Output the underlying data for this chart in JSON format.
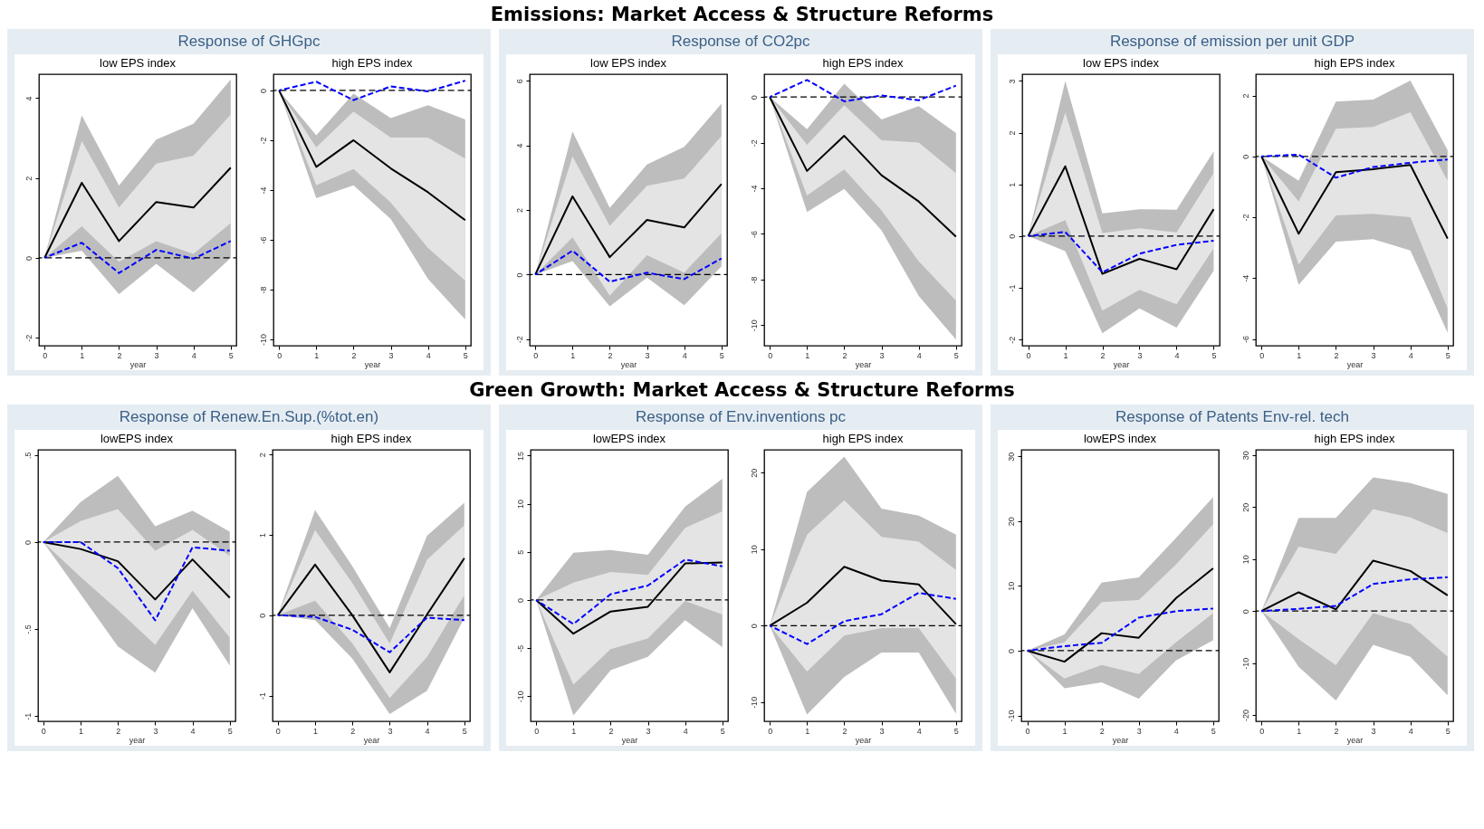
{
  "chart_data": [
    {
      "type": "line",
      "title": "low EPS index",
      "xlabel": "year",
      "annotations": [
        "Emissions: Market Access & Structure Reforms",
        "Response of GHGpc"
      ],
      "x": [
        0,
        1,
        2,
        3,
        4,
        5
      ],
      "xlim": [
        -0.15,
        5.15
      ],
      "xticks": [
        0,
        1,
        2,
        3,
        4,
        5
      ],
      "ylim": [
        -2.2,
        4.6
      ],
      "yticks": [
        -2,
        0,
        2,
        4
      ],
      "ref_lines": [
        {
          "axis": "y",
          "value": 0,
          "color": "#000000",
          "line_style": "dashed"
        }
      ],
      "series": [
        {
          "color": "#bdbdbd",
          "values": [
            null,
            null,
            null,
            null,
            null,
            null
          ],
          "lower": [
            0,
            0.18,
            -0.91,
            -0.15,
            -0.86,
            0.0
          ],
          "upper": [
            0,
            3.57,
            1.81,
            2.96,
            3.36,
            4.47
          ]
        },
        {
          "color": "#e4e4e4",
          "values": [
            null,
            null,
            null,
            null,
            null,
            null
          ],
          "lower": [
            0,
            0.79,
            -0.1,
            0.42,
            0.1,
            0.87
          ],
          "upper": [
            0,
            2.93,
            1.26,
            2.36,
            2.56,
            3.59
          ]
        },
        {
          "color": "#000000",
          "values": [
            0,
            1.88,
            0.42,
            1.4,
            1.26,
            2.26
          ]
        },
        {
          "color": "#0000ff",
          "line_style": "dashed",
          "values": [
            0,
            0.38,
            -0.38,
            0.2,
            -0.02,
            0.42
          ]
        }
      ]
    },
    {
      "type": "line",
      "title": "high EPS index",
      "xlabel": "year",
      "x": [
        0,
        1,
        2,
        3,
        4,
        5
      ],
      "xlim": [
        -0.15,
        5.15
      ],
      "xticks": [
        0,
        1,
        2,
        3,
        4,
        5
      ],
      "ylim": [
        -10.25,
        0.65
      ],
      "yticks": [
        -10,
        -8,
        -6,
        -4,
        -2,
        0
      ],
      "ref_lines": [
        {
          "axis": "y",
          "value": 0,
          "color": "#000000",
          "line_style": "dashed"
        }
      ],
      "series": [
        {
          "color": "#bdbdbd",
          "values": [
            null,
            null,
            null,
            null,
            null,
            null
          ],
          "lower": [
            0,
            -4.33,
            -3.81,
            -5.16,
            -7.57,
            -9.2
          ],
          "upper": [
            0,
            -1.8,
            -0.13,
            -1.11,
            -0.59,
            -1.17
          ]
        },
        {
          "color": "#e4e4e4",
          "values": [
            null,
            null,
            null,
            null,
            null,
            null
          ],
          "lower": [
            0,
            -3.81,
            -3.16,
            -4.5,
            -6.33,
            -7.64
          ],
          "upper": [
            0,
            -2.28,
            -0.85,
            -1.89,
            -1.89,
            -2.74
          ]
        },
        {
          "color": "#000000",
          "values": [
            0,
            -3.07,
            -2.0,
            -3.13,
            -4.09,
            -5.21
          ]
        },
        {
          "color": "#0000ff",
          "line_style": "dashed",
          "values": [
            0,
            0.35,
            -0.39,
            0.16,
            -0.04,
            0.39
          ]
        }
      ]
    },
    {
      "type": "line",
      "title": "low EPS index",
      "xlabel": "year",
      "annotations": [
        "Response of CO2pc"
      ],
      "x": [
        0,
        1,
        2,
        3,
        4,
        5
      ],
      "xlim": [
        -0.15,
        5.15
      ],
      "xticks": [
        0,
        1,
        2,
        3,
        4,
        5
      ],
      "ylim": [
        -2.2,
        6.2
      ],
      "yticks": [
        -2,
        0,
        2,
        4,
        6
      ],
      "ref_lines": [
        {
          "axis": "y",
          "value": 0,
          "color": "#000000",
          "line_style": "dashed"
        }
      ],
      "series": [
        {
          "color": "#bdbdbd",
          "values": [
            null,
            null,
            null,
            null,
            null,
            null
          ],
          "lower": [
            0,
            0.42,
            -0.98,
            -0.09,
            -0.95,
            0.26
          ],
          "upper": [
            0,
            4.43,
            2.06,
            3.41,
            3.95,
            5.29
          ]
        },
        {
          "color": "#e4e4e4",
          "values": [
            null,
            null,
            null,
            null,
            null,
            null
          ],
          "lower": [
            0,
            1.15,
            -0.65,
            0.6,
            0.06,
            1.28
          ],
          "upper": [
            0,
            3.66,
            1.51,
            2.75,
            2.97,
            4.29
          ]
        },
        {
          "color": "#000000",
          "values": [
            0,
            2.42,
            0.54,
            1.69,
            1.46,
            2.8
          ]
        },
        {
          "color": "#0000ff",
          "line_style": "dashed",
          "values": [
            0,
            0.74,
            -0.22,
            0.06,
            -0.14,
            0.5
          ]
        }
      ]
    },
    {
      "type": "line",
      "title": "high EPS index",
      "xlabel": "year",
      "x": [
        0,
        1,
        2,
        3,
        4,
        5
      ],
      "xlim": [
        -0.15,
        5.15
      ],
      "xticks": [
        0,
        1,
        2,
        3,
        4,
        5
      ],
      "ylim": [
        -10.9,
        1.0
      ],
      "yticks": [
        -10,
        -8,
        -6,
        -4,
        -2,
        0
      ],
      "ref_lines": [
        {
          "axis": "y",
          "value": 0,
          "color": "#000000",
          "line_style": "dashed"
        }
      ],
      "series": [
        {
          "color": "#bdbdbd",
          "values": [
            null,
            null,
            null,
            null,
            null,
            null
          ],
          "lower": [
            0,
            -5.04,
            -4.03,
            -5.84,
            -8.72,
            -10.63
          ],
          "upper": [
            0,
            -1.41,
            0.58,
            -0.98,
            -0.4,
            -1.58
          ]
        },
        {
          "color": "#e4e4e4",
          "values": [
            null,
            null,
            null,
            null,
            null,
            null
          ],
          "lower": [
            0,
            -4.32,
            -3.17,
            -4.97,
            -7.2,
            -8.93
          ],
          "upper": [
            0,
            -2.09,
            -0.36,
            -1.9,
            -1.99,
            -3.34
          ]
        },
        {
          "color": "#000000",
          "values": [
            0,
            -3.24,
            -1.7,
            -3.43,
            -4.58,
            -6.12
          ]
        },
        {
          "color": "#0000ff",
          "line_style": "dashed",
          "values": [
            0,
            0.75,
            -0.19,
            0.07,
            -0.14,
            0.5
          ]
        }
      ]
    },
    {
      "type": "line",
      "title": "low EPS index",
      "xlabel": "year",
      "annotations": [
        "Response of emission per unit GDP"
      ],
      "x": [
        0,
        1,
        2,
        3,
        4,
        5
      ],
      "xlim": [
        -0.16,
        5.16
      ],
      "xticks": [
        0,
        1,
        2,
        3,
        4,
        5
      ],
      "ylim": [
        -2.12,
        3.13
      ],
      "yticks": [
        -2,
        -1,
        0,
        1,
        2,
        3
      ],
      "ref_lines": [
        {
          "axis": "y",
          "value": 0,
          "color": "#000000",
          "line_style": "dashed"
        }
      ],
      "series": [
        {
          "color": "#bdbdbd",
          "values": [
            null,
            null,
            null,
            null,
            null,
            null
          ],
          "lower": [
            0,
            -0.29,
            -1.88,
            -1.4,
            -1.77,
            -0.67
          ],
          "upper": [
            0,
            3.0,
            0.44,
            0.52,
            0.51,
            1.64
          ]
        },
        {
          "color": "#e4e4e4",
          "values": [
            null,
            null,
            null,
            null,
            null,
            null
          ],
          "lower": [
            0,
            0.31,
            -1.44,
            -1.04,
            -1.32,
            -0.24
          ],
          "upper": [
            0,
            2.39,
            0.06,
            0.15,
            0.07,
            1.22
          ]
        },
        {
          "color": "#000000",
          "values": [
            0,
            1.35,
            -0.73,
            -0.44,
            -0.64,
            0.52
          ]
        },
        {
          "color": "#0000ff",
          "line_style": "dashed",
          "values": [
            0,
            0.08,
            -0.7,
            -0.34,
            -0.17,
            -0.09
          ]
        }
      ]
    },
    {
      "type": "line",
      "title": "high EPS index",
      "xlabel": "year",
      "x": [
        0,
        1,
        2,
        3,
        4,
        5
      ],
      "xlim": [
        -0.15,
        5.15
      ],
      "xticks": [
        0,
        1,
        2,
        3,
        4,
        5
      ],
      "ylim": [
        -6.22,
        2.7
      ],
      "yticks": [
        -6,
        -4,
        -2,
        0,
        2
      ],
      "ref_lines": [
        {
          "axis": "y",
          "value": 0,
          "color": "#000000",
          "line_style": "dashed"
        }
      ],
      "series": [
        {
          "color": "#bdbdbd",
          "values": [
            null,
            null,
            null,
            null,
            null,
            null
          ],
          "lower": [
            0,
            -4.22,
            -2.8,
            -2.72,
            -3.09,
            -5.8
          ],
          "upper": [
            0,
            -0.8,
            1.8,
            1.87,
            2.49,
            0.2
          ]
        },
        {
          "color": "#e4e4e4",
          "values": [
            null,
            null,
            null,
            null,
            null,
            null
          ],
          "lower": [
            0,
            -3.55,
            -1.94,
            -1.89,
            -2.0,
            -5.0
          ],
          "upper": [
            0,
            -1.48,
            0.91,
            0.97,
            1.45,
            -0.8
          ]
        },
        {
          "color": "#000000",
          "values": [
            0,
            -2.54,
            -0.52,
            -0.42,
            -0.28,
            -2.7
          ]
        },
        {
          "color": "#0000ff",
          "line_style": "dashed",
          "values": [
            0,
            0.06,
            -0.7,
            -0.35,
            -0.21,
            -0.1
          ]
        }
      ]
    },
    {
      "type": "line",
      "title": "lowEPS index",
      "xlabel": "year",
      "annotations": [
        "Green Growth: Market Access & Structure Reforms",
        "Response of Renew.En.Sup.(%tot.en)"
      ],
      "x": [
        0,
        1,
        2,
        3,
        4,
        5
      ],
      "xlim": [
        -0.14,
        5.15
      ],
      "xticks": [
        0,
        1,
        2,
        3,
        4,
        5
      ],
      "ylim": [
        -1.03,
        0.53
      ],
      "yticks": [
        -1,
        {
          "value": -0.5,
          "label": "-.5"
        },
        0,
        {
          "value": 0.5,
          "label": ".5"
        }
      ],
      "ref_lines": [
        {
          "axis": "y",
          "value": 0,
          "color": "#000000",
          "line_style": "dashed"
        }
      ],
      "series": [
        {
          "color": "#bdbdbd",
          "values": [
            null,
            null,
            null,
            null,
            null,
            null
          ],
          "lower": [
            0,
            -0.3,
            -0.6,
            -0.75,
            -0.38,
            -0.71
          ],
          "upper": [
            0,
            0.23,
            0.38,
            0.09,
            0.18,
            0.06
          ]
        },
        {
          "color": "#e4e4e4",
          "values": [
            null,
            null,
            null,
            null,
            null,
            null
          ],
          "lower": [
            0,
            -0.2,
            -0.39,
            -0.59,
            -0.28,
            -0.55
          ],
          "upper": [
            0,
            0.12,
            0.19,
            -0.05,
            0.07,
            -0.08
          ]
        },
        {
          "color": "#000000",
          "values": [
            0,
            -0.04,
            -0.11,
            -0.33,
            -0.1,
            -0.32
          ]
        },
        {
          "color": "#0000ff",
          "line_style": "dashed",
          "values": [
            0,
            0.0,
            -0.15,
            -0.45,
            -0.03,
            -0.05
          ]
        }
      ]
    },
    {
      "type": "line",
      "title": "high EPS index",
      "xlabel": "year",
      "x": [
        0,
        1,
        2,
        3,
        4,
        5
      ],
      "xlim": [
        -0.14,
        5.15
      ],
      "xticks": [
        0,
        1,
        2,
        3,
        4,
        5
      ],
      "ylim": [
        -1.32,
        2.06
      ],
      "yticks": [
        -1,
        0,
        1,
        2
      ],
      "ref_lines": [
        {
          "axis": "y",
          "value": 0,
          "color": "#000000",
          "line_style": "dashed"
        }
      ],
      "series": [
        {
          "color": "#bdbdbd",
          "values": [
            null,
            null,
            null,
            null,
            null,
            null
          ],
          "lower": [
            0,
            -0.06,
            -0.54,
            -1.23,
            -0.94,
            -0.03
          ],
          "upper": [
            0,
            1.31,
            0.61,
            -0.16,
            0.99,
            1.4
          ]
        },
        {
          "color": "#e4e4e4",
          "values": [
            null,
            null,
            null,
            null,
            null,
            null
          ],
          "lower": [
            0,
            0.18,
            -0.35,
            -1.03,
            -0.52,
            0.25
          ],
          "upper": [
            0,
            1.06,
            0.4,
            -0.35,
            0.69,
            1.12
          ]
        },
        {
          "color": "#000000",
          "values": [
            0,
            0.63,
            0.0,
            -0.71,
            0.01,
            0.71
          ]
        },
        {
          "color": "#0000ff",
          "line_style": "dashed",
          "values": [
            0,
            -0.02,
            -0.18,
            -0.46,
            -0.03,
            -0.06
          ]
        }
      ]
    },
    {
      "type": "line",
      "title": "lowEPS index",
      "xlabel": "year",
      "annotations": [
        "Response of Env.inventions pc"
      ],
      "x": [
        0,
        1,
        2,
        3,
        4,
        5
      ],
      "xlim": [
        -0.15,
        5.15
      ],
      "xticks": [
        0,
        1,
        2,
        3,
        4,
        5
      ],
      "ylim": [
        -12.6,
        15.6
      ],
      "yticks": [
        -10,
        -5,
        0,
        5,
        10,
        15
      ],
      "ref_lines": [
        {
          "axis": "y",
          "value": 0,
          "color": "#000000",
          "line_style": "dashed"
        }
      ],
      "series": [
        {
          "color": "#bdbdbd",
          "values": [
            null,
            null,
            null,
            null,
            null,
            null
          ],
          "lower": [
            0,
            -12.0,
            -7.3,
            -5.9,
            -2.1,
            -4.9
          ],
          "upper": [
            0,
            4.9,
            5.2,
            4.7,
            9.7,
            12.6
          ]
        },
        {
          "color": "#e4e4e4",
          "values": [
            null,
            null,
            null,
            null,
            null,
            null
          ],
          "lower": [
            0,
            -8.8,
            -5.1,
            -4.0,
            -0.1,
            -1.5
          ],
          "upper": [
            0,
            1.8,
            2.9,
            2.6,
            7.5,
            9.2
          ]
        },
        {
          "color": "#000000",
          "values": [
            0,
            -3.5,
            -1.2,
            -0.7,
            3.8,
            3.9
          ]
        },
        {
          "color": "#0000ff",
          "line_style": "dashed",
          "values": [
            0,
            -2.5,
            0.6,
            1.5,
            4.2,
            3.5
          ]
        }
      ]
    },
    {
      "type": "line",
      "title": "high EPS index",
      "xlabel": "year",
      "x": [
        0,
        1,
        2,
        3,
        4,
        5
      ],
      "xlim": [
        -0.15,
        5.15
      ],
      "xticks": [
        0,
        1,
        2,
        3,
        4,
        5
      ],
      "ylim": [
        -12.5,
        23.0
      ],
      "yticks": [
        -10,
        0,
        10,
        20
      ],
      "ref_lines": [
        {
          "axis": "y",
          "value": 0,
          "color": "#000000",
          "line_style": "dashed"
        }
      ],
      "series": [
        {
          "color": "#bdbdbd",
          "values": [
            null,
            null,
            null,
            null,
            null,
            null
          ],
          "lower": [
            0,
            -11.6,
            -6.7,
            -3.5,
            -3.5,
            -11.5
          ],
          "upper": [
            0,
            17.5,
            22.1,
            15.3,
            14.4,
            11.9
          ]
        },
        {
          "color": "#e4e4e4",
          "values": [
            null,
            null,
            null,
            null,
            null,
            null
          ],
          "lower": [
            0,
            -6.0,
            -1.3,
            -0.3,
            -0.3,
            -6.9
          ],
          "upper": [
            0,
            11.9,
            16.4,
            11.6,
            11.0,
            7.3
          ]
        },
        {
          "color": "#000000",
          "values": [
            0,
            3.0,
            7.7,
            5.9,
            5.4,
            0.2
          ]
        },
        {
          "color": "#0000ff",
          "line_style": "dashed",
          "values": [
            0,
            -2.4,
            0.6,
            1.5,
            4.3,
            3.5
          ]
        }
      ]
    },
    {
      "type": "line",
      "title": "lowEPS index",
      "xlabel": "year",
      "annotations": [
        "Response of Patents Env-rel. tech"
      ],
      "x": [
        0,
        1,
        2,
        3,
        4,
        5
      ],
      "xlim": [
        -0.16,
        5.15
      ],
      "xticks": [
        0,
        1,
        2,
        3,
        4,
        5
      ],
      "ylim": [
        -10.9,
        31.0
      ],
      "yticks": [
        -10,
        0,
        10,
        20,
        30
      ],
      "ref_lines": [
        {
          "axis": "y",
          "value": 0,
          "color": "#000000",
          "line_style": "dashed"
        }
      ],
      "series": [
        {
          "color": "#bdbdbd",
          "values": [
            null,
            null,
            null,
            null,
            null,
            null
          ],
          "lower": [
            0,
            -5.8,
            -4.9,
            -7.4,
            -1.5,
            1.6
          ],
          "upper": [
            0,
            2.5,
            10.5,
            11.3,
            17.4,
            23.7
          ]
        },
        {
          "color": "#e4e4e4",
          "values": [
            null,
            null,
            null,
            null,
            null,
            null
          ],
          "lower": [
            0,
            -4.3,
            -2.2,
            -3.6,
            1.3,
            5.8
          ],
          "upper": [
            0,
            1.3,
            7.5,
            7.8,
            13.3,
            19.5
          ]
        },
        {
          "color": "#000000",
          "values": [
            0,
            -1.7,
            2.7,
            2.0,
            8.1,
            12.7
          ]
        },
        {
          "color": "#0000ff",
          "line_style": "dashed",
          "values": [
            0,
            0.7,
            1.2,
            5.1,
            6.1,
            6.5
          ]
        }
      ]
    },
    {
      "type": "line",
      "title": "high EPS index",
      "xlabel": "year",
      "x": [
        0,
        1,
        2,
        3,
        4,
        5
      ],
      "xlim": [
        -0.15,
        5.15
      ],
      "xticks": [
        0,
        1,
        2,
        3,
        4,
        5
      ],
      "ylim": [
        -21.2,
        31.0
      ],
      "yticks": [
        -20,
        -10,
        0,
        10,
        20,
        30
      ],
      "ref_lines": [
        {
          "axis": "y",
          "value": 0,
          "color": "#000000",
          "line_style": "dashed"
        }
      ],
      "series": [
        {
          "color": "#bdbdbd",
          "values": [
            null,
            null,
            null,
            null,
            null,
            null
          ],
          "lower": [
            0,
            -10.7,
            -17.2,
            -6.5,
            -8.8,
            -16.2
          ],
          "upper": [
            0,
            17.9,
            17.9,
            25.7,
            24.6,
            22.5
          ]
        },
        {
          "color": "#e4e4e4",
          "values": [
            null,
            null,
            null,
            null,
            null,
            null
          ],
          "lower": [
            0,
            -5.4,
            -10.4,
            -0.4,
            -2.5,
            -8.8
          ],
          "upper": [
            0,
            12.4,
            11.0,
            19.6,
            18.0,
            15.0
          ]
        },
        {
          "color": "#000000",
          "values": [
            0,
            3.6,
            0.3,
            9.7,
            7.7,
            3.0
          ]
        },
        {
          "color": "#0000ff",
          "line_style": "dashed",
          "values": [
            0,
            0.4,
            1.0,
            5.2,
            6.1,
            6.5
          ]
        }
      ]
    }
  ]
}
